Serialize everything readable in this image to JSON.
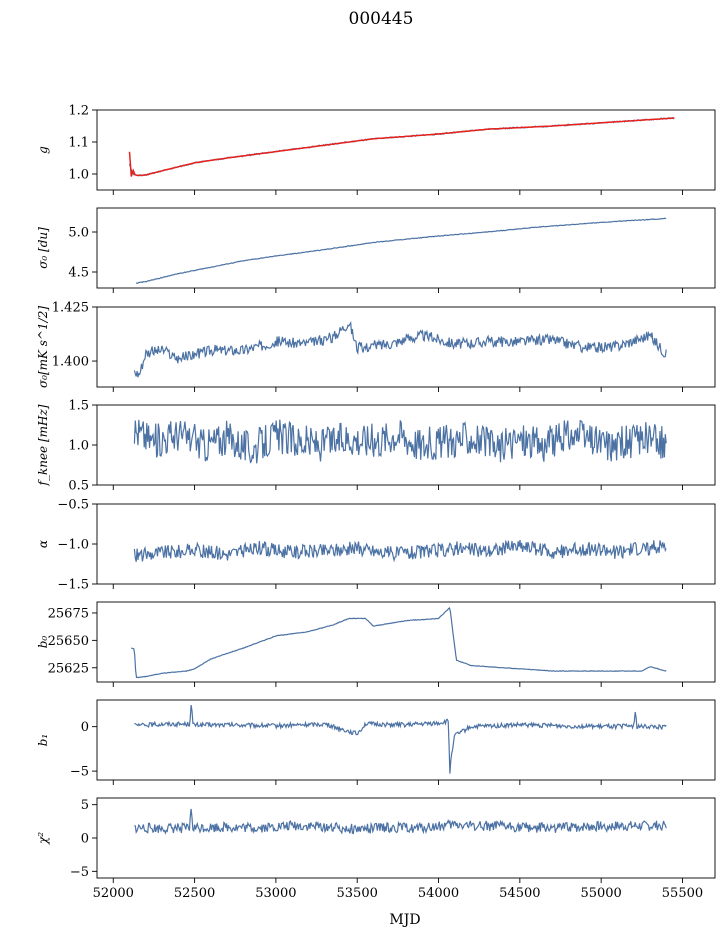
{
  "chart_data": {
    "type": "line",
    "title": "000445",
    "xlabel": "MJD",
    "xlim": [
      51900,
      55700
    ],
    "xticks": [
      52000,
      52500,
      53000,
      53500,
      54000,
      54500,
      55000,
      55500
    ],
    "xtick_labels": [
      "52000",
      "52500",
      "53000",
      "53500",
      "54000",
      "54500",
      "55000",
      "55500"
    ],
    "series_color": "#4c72a4",
    "fit_color": "#e8211b",
    "panels": [
      {
        "name": "g",
        "ylabel": "g",
        "ylim": [
          0.95,
          1.2
        ],
        "yticks": [
          1.0,
          1.1,
          1.2
        ],
        "ytick_labels": [
          "1.0",
          "1.1",
          "1.2"
        ],
        "x": [
          52100,
          52120,
          52150,
          52200,
          52300,
          52500,
          52700,
          53000,
          53300,
          53600,
          54000,
          54300,
          54700,
          55000,
          55300,
          55450
        ],
        "y": [
          1.03,
          1.0,
          0.995,
          0.997,
          1.01,
          1.035,
          1.05,
          1.07,
          1.09,
          1.11,
          1.125,
          1.14,
          1.15,
          1.16,
          1.17,
          1.175
        ],
        "fit_x": [
          52100,
          52110,
          52120,
          52150,
          52200,
          52300,
          52500,
          52700,
          53000,
          53300,
          53600,
          54000,
          54300,
          54700,
          55000,
          55300,
          55450
        ],
        "fit_y": [
          1.06,
          1.01,
          1.0,
          0.995,
          0.997,
          1.01,
          1.035,
          1.05,
          1.07,
          1.09,
          1.11,
          1.125,
          1.14,
          1.15,
          1.16,
          1.17,
          1.175
        ]
      },
      {
        "name": "sigma0-du",
        "ylabel": "σ₀ [du]",
        "ylim": [
          4.3,
          5.3
        ],
        "yticks": [
          4.5,
          5.0
        ],
        "ytick_labels": [
          "4.5",
          "5.0"
        ],
        "x": [
          52140,
          52200,
          52400,
          52600,
          52800,
          53000,
          53300,
          53600,
          54000,
          54300,
          54600,
          55000,
          55400
        ],
        "y": [
          4.36,
          4.38,
          4.48,
          4.56,
          4.64,
          4.7,
          4.78,
          4.87,
          4.95,
          5.0,
          5.06,
          5.12,
          5.17
        ]
      },
      {
        "name": "sigma0-mks",
        "ylabel": "σ₀[mK s^1/2]",
        "ylim": [
          1.388,
          1.425
        ],
        "yticks": [
          1.4,
          1.425
        ],
        "ytick_labels": [
          "1.400",
          "1.425"
        ],
        "x": [
          52130,
          52160,
          52200,
          52300,
          52400,
          52600,
          52800,
          53000,
          53200,
          53350,
          53450,
          53500,
          53700,
          53900,
          54100,
          54300,
          54500,
          54700,
          54900,
          55100,
          55300,
          55400
        ],
        "y": [
          1.395,
          1.394,
          1.404,
          1.405,
          1.401,
          1.405,
          1.405,
          1.409,
          1.408,
          1.411,
          1.418,
          1.406,
          1.408,
          1.412,
          1.408,
          1.409,
          1.409,
          1.41,
          1.406,
          1.407,
          1.412,
          1.403
        ]
      },
      {
        "name": "fknee",
        "ylabel": "f_knee [mHz]",
        "ylim": [
          0.5,
          1.5
        ],
        "yticks": [
          0.5,
          1.0,
          1.5
        ],
        "ytick_labels": [
          "0.5",
          "1.0",
          "1.5"
        ],
        "x": [
          52130,
          52250,
          52400,
          52550,
          52700,
          52850,
          53000,
          53150,
          53300,
          53450,
          53600,
          53750,
          53900,
          54050,
          54200,
          54350,
          54500,
          54650,
          54800,
          54950,
          55100,
          55250,
          55400
        ],
        "y": [
          1.2,
          1.05,
          1.15,
          1.0,
          1.1,
          0.95,
          1.12,
          1.05,
          1.0,
          1.1,
          1.05,
          1.15,
          1.0,
          1.05,
          1.1,
          0.95,
          1.08,
          1.0,
          1.12,
          1.05,
          1.0,
          1.1,
          1.0
        ]
      },
      {
        "name": "alpha",
        "ylabel": "α",
        "ylim": [
          -1.5,
          -0.5
        ],
        "yticks": [
          -1.5,
          -1.0,
          -0.5
        ],
        "ytick_labels": [
          "−1.5",
          "−1.0",
          "−0.5"
        ],
        "x": [
          52130,
          52300,
          52500,
          52700,
          52900,
          53100,
          53300,
          53500,
          53700,
          53900,
          54100,
          54300,
          54500,
          54700,
          54900,
          55100,
          55300,
          55400
        ],
        "y": [
          -1.15,
          -1.1,
          -1.08,
          -1.12,
          -1.05,
          -1.1,
          -1.08,
          -1.05,
          -1.12,
          -1.1,
          -1.05,
          -1.08,
          -1.02,
          -1.1,
          -1.06,
          -1.1,
          -1.05,
          -1.0
        ]
      },
      {
        "name": "b0",
        "ylabel": "b₀",
        "ylim": [
          25612,
          25685
        ],
        "yticks": [
          25625,
          25650,
          25675
        ],
        "ytick_labels": [
          "25625",
          "25650",
          "25675"
        ],
        "x": [
          52110,
          52130,
          52140,
          52200,
          52300,
          52450,
          52500,
          52600,
          52800,
          53000,
          53200,
          53350,
          53450,
          53550,
          53600,
          53800,
          54000,
          54070,
          54090,
          54110,
          54200,
          54400,
          54700,
          55000,
          55250,
          55300,
          55400
        ],
        "y": [
          25643,
          25642,
          25616,
          25617,
          25620,
          25622,
          25624,
          25633,
          25643,
          25654,
          25658,
          25664,
          25670,
          25670,
          25663,
          25668,
          25670,
          25680,
          25655,
          25632,
          25627,
          25625,
          25622,
          25622,
          25622,
          25626,
          25622
        ]
      },
      {
        "name": "b1",
        "ylabel": "b₁",
        "ylim": [
          -6,
          3
        ],
        "yticks": [
          -5,
          0
        ],
        "ytick_labels": [
          "−5",
          "0"
        ],
        "x": [
          52130,
          52300,
          52470,
          52480,
          52490,
          52700,
          53000,
          53300,
          53500,
          53550,
          53800,
          54000,
          54060,
          54070,
          54080,
          54100,
          54200,
          54500,
          55000,
          55200,
          55210,
          55220,
          55400
        ],
        "y": [
          0.1,
          0.3,
          0.3,
          2.7,
          0.2,
          0.2,
          0.1,
          0.3,
          -0.8,
          0.3,
          0.2,
          0.4,
          0.6,
          -5.2,
          -3.0,
          -1.0,
          0.0,
          0.2,
          0.0,
          0.1,
          1.6,
          0.0,
          0.0
        ]
      },
      {
        "name": "chi2",
        "ylabel": "χ²",
        "ylim": [
          -6,
          6
        ],
        "yticks": [
          -5,
          0,
          5
        ],
        "ytick_labels": [
          "−5",
          "0",
          "5"
        ],
        "x": [
          52130,
          52300,
          52470,
          52480,
          52490,
          52700,
          52900,
          53100,
          53300,
          53500,
          53700,
          53900,
          54100,
          54300,
          54500,
          54700,
          54900,
          55100,
          55300,
          55400
        ],
        "y": [
          1.5,
          1.4,
          1.5,
          4.5,
          1.5,
          1.6,
          1.5,
          1.8,
          1.7,
          1.3,
          1.6,
          1.5,
          2.0,
          1.8,
          1.6,
          1.5,
          1.7,
          1.8,
          1.8,
          2.0
        ]
      }
    ]
  }
}
